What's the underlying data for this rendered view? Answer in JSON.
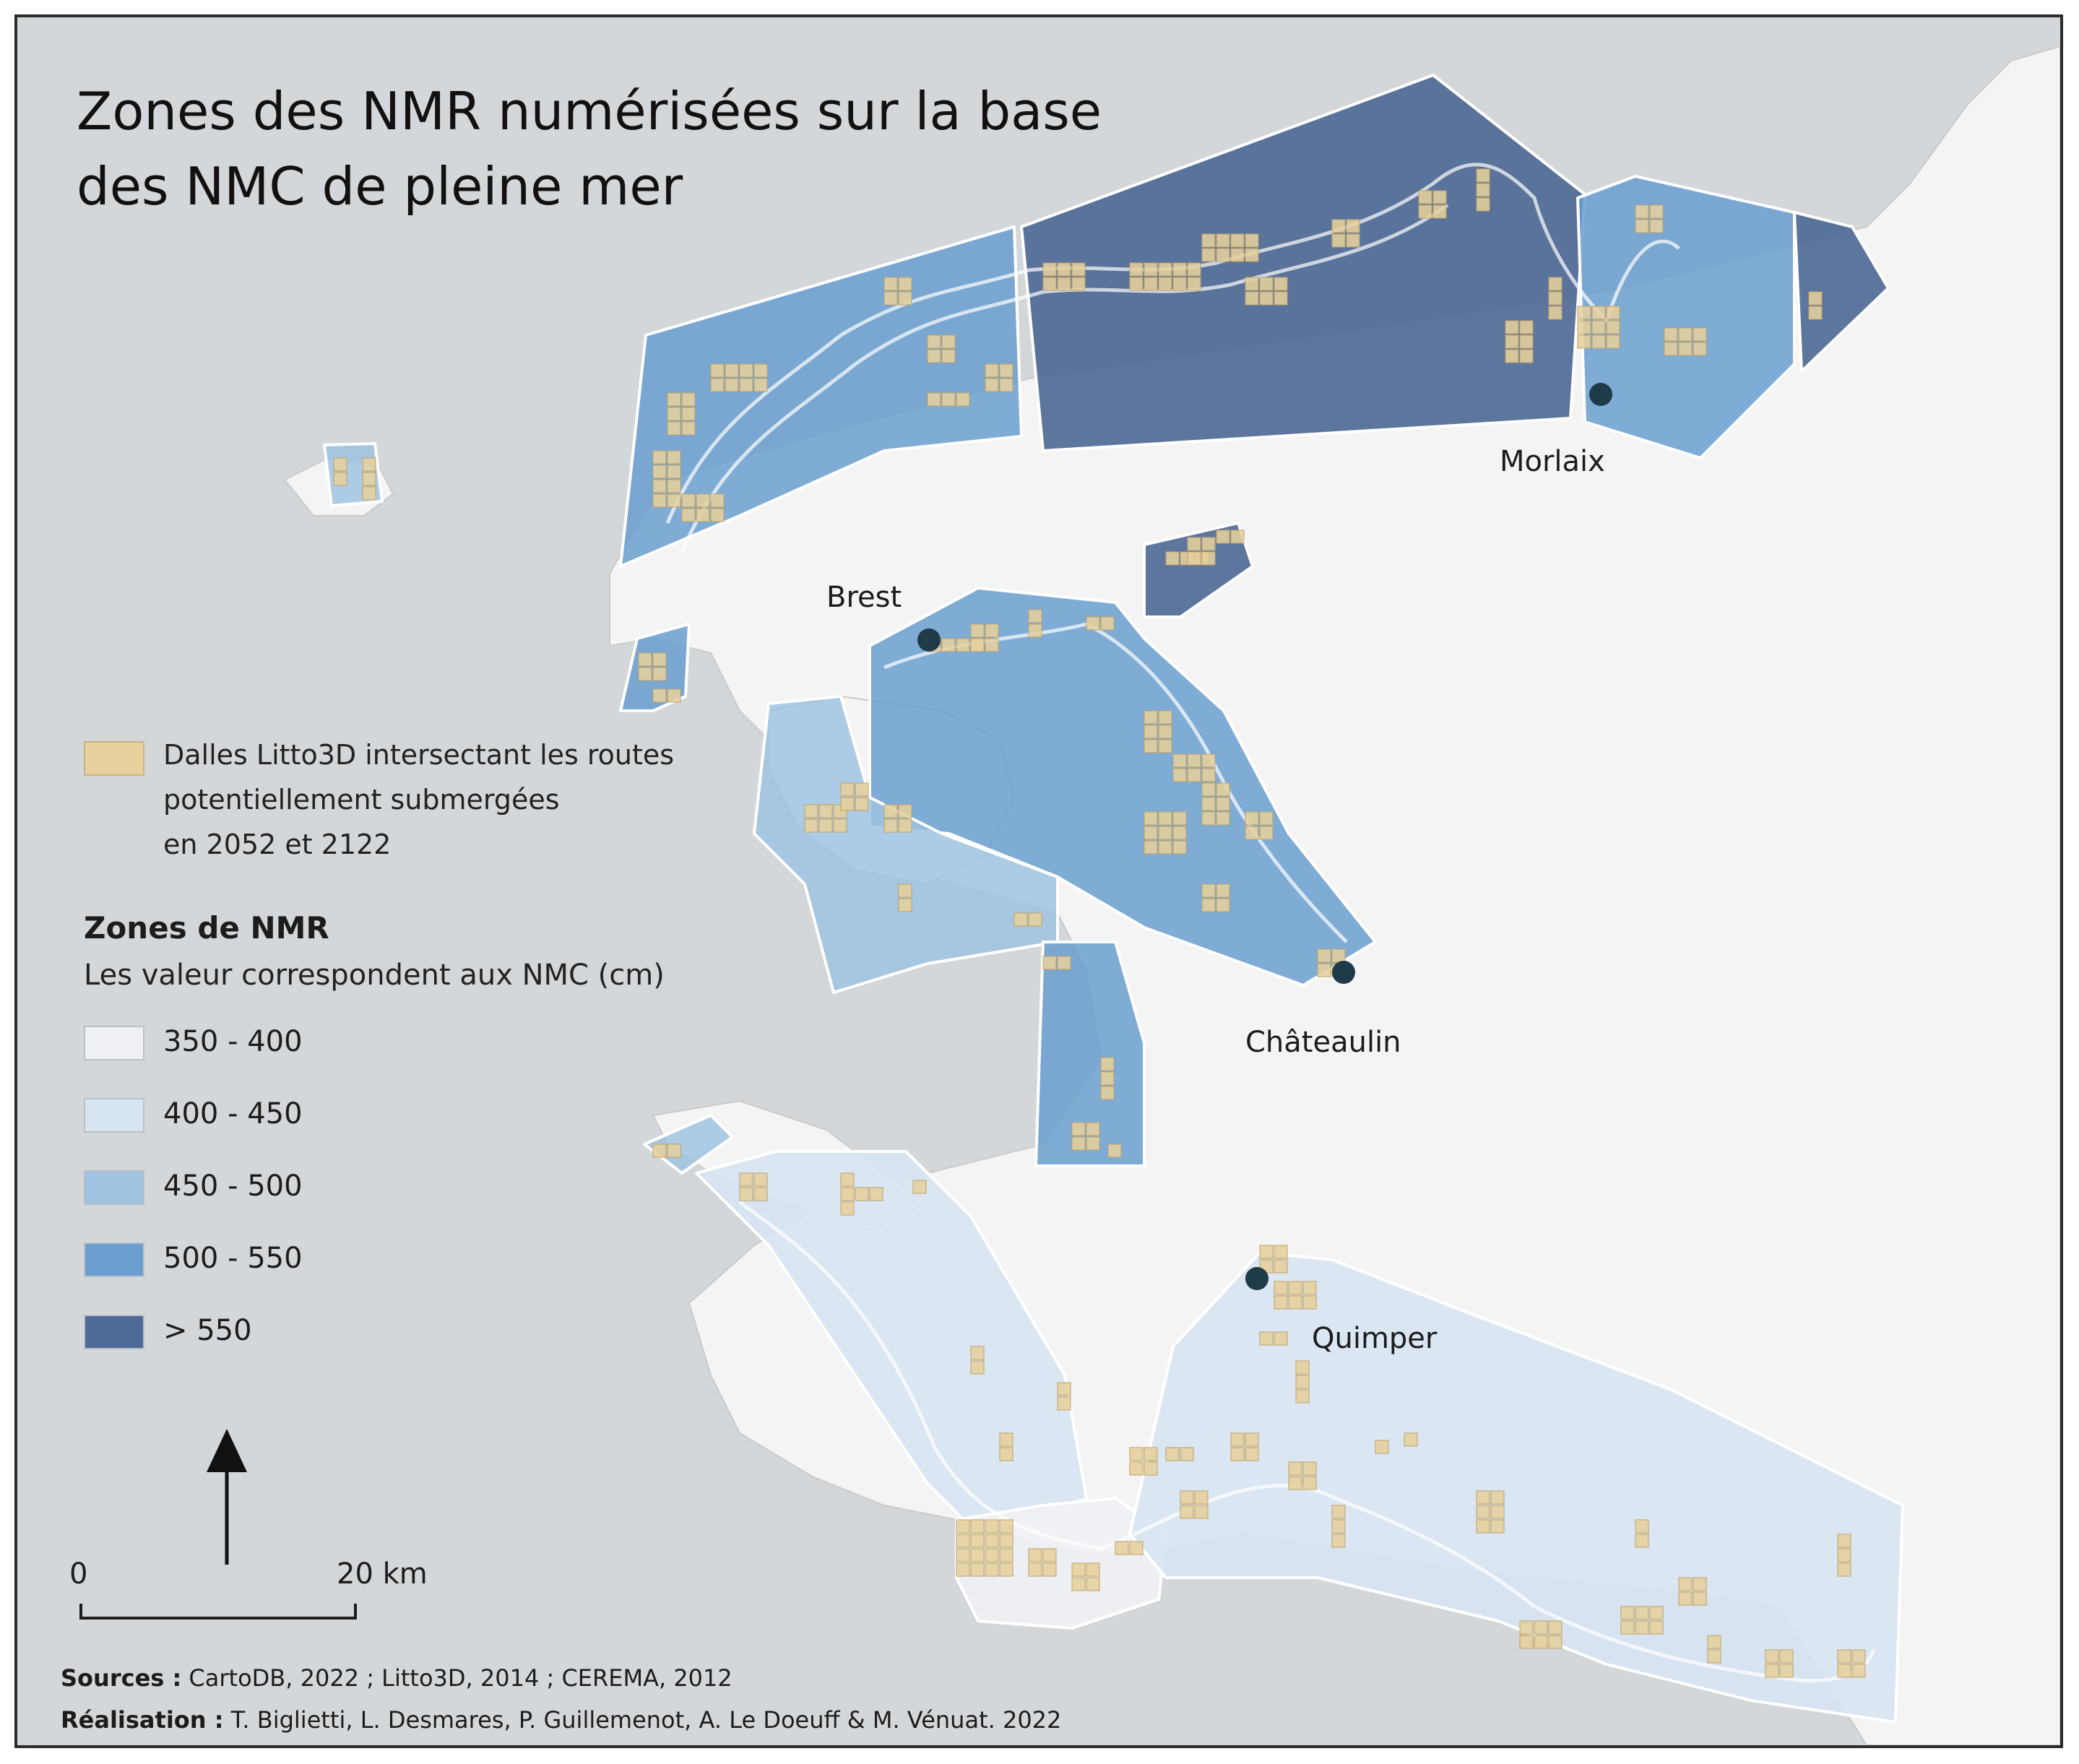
{
  "title": {
    "line1": "Zones des NMR numérisées sur la base",
    "line2": "des NMC de pleine mer"
  },
  "legend_tiles": {
    "line1": "Dalles Litto3D intersectant les routes",
    "line2": "potentiellement submergées",
    "line3": "en 2052 et 2122",
    "color": "#e6d09c"
  },
  "legend_zones": {
    "title": "Zones de NMR",
    "subtitle": "Les valeur correspondent aux NMC (cm)",
    "classes": [
      {
        "label": "350 - 400",
        "color": "#eef0f3"
      },
      {
        "label": "400 - 450",
        "color": "#d7e4f2"
      },
      {
        "label": "450 - 500",
        "color": "#9fc3e0"
      },
      {
        "label": "500 - 550",
        "color": "#6a9fcf"
      },
      {
        "label": "> 550",
        "color": "#4f6a96"
      }
    ]
  },
  "cities": {
    "brest": "Brest",
    "morlaix": "Morlaix",
    "chateaulin": "Châteaulin",
    "quimper": "Quimper"
  },
  "scale": {
    "zero": "0",
    "max": "20 km"
  },
  "sources": {
    "sources_label": "Sources :",
    "sources_text": "CartoDB, 2022 ; Litto3D, 2014 ; CEREMA, 2012",
    "credit_label": "Réalisation :",
    "credit_text": "T. Biglietti, L. Desmares, P. Guillemenot, A. Le Doeuff & M. Vénuat. 2022"
  },
  "colors": {
    "sea": "#d4d7da",
    "land": "#f4f4f4",
    "city_dot": "#1f3a48",
    "tile": "#e6d09c"
  },
  "icons": {
    "north_arrow": "north-arrow-icon"
  }
}
